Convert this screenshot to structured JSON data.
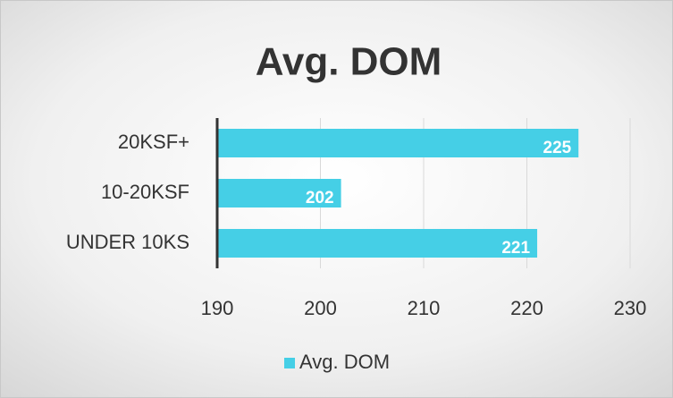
{
  "chart_data": {
    "type": "bar",
    "orientation": "horizontal",
    "title": "Avg. DOM",
    "categories": [
      "20KSF+",
      "10-20KSF",
      "UNDER 10KS"
    ],
    "series": [
      {
        "name": "Avg. DOM",
        "color": "#45cfe6",
        "values": [
          225,
          202,
          221
        ]
      }
    ],
    "xlim": [
      190,
      230
    ],
    "xticks": [
      190,
      200,
      210,
      220,
      230
    ],
    "grid": true,
    "legend": "bottom"
  }
}
